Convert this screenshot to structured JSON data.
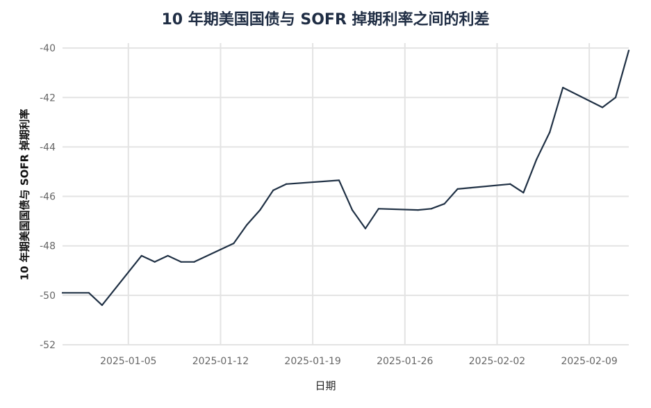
{
  "chart_data": {
    "type": "line",
    "title": "10 年期美国国债与 SOFR 掉期利率之间的利差",
    "xlabel": "日期",
    "ylabel": "10 年期美国国债与 SOFR 掉期利率",
    "x_ticks": [
      "2025-01-05",
      "2025-01-12",
      "2025-01-19",
      "2025-01-26",
      "2025-02-02",
      "2025-02-09"
    ],
    "y_ticks": [
      -40,
      -42,
      -44,
      -46,
      -48,
      -50,
      -52
    ],
    "ylim": [
      -52,
      -39.8
    ],
    "xlim": [
      "2024-12-31",
      "2025-02-12"
    ],
    "grid": true,
    "line_color": "#1f3044",
    "series": [
      {
        "x": [
          "2024-12-31",
          "2025-01-02",
          "2025-01-03",
          "2025-01-06",
          "2025-01-07",
          "2025-01-08",
          "2025-01-09",
          "2025-01-10",
          "2025-01-13",
          "2025-01-14",
          "2025-01-15",
          "2025-01-16",
          "2025-01-17",
          "2025-01-21",
          "2025-01-22",
          "2025-01-23",
          "2025-01-24",
          "2025-01-27",
          "2025-01-28",
          "2025-01-29",
          "2025-01-30",
          "2025-01-31",
          "2025-02-03",
          "2025-02-04",
          "2025-02-05",
          "2025-02-06",
          "2025-02-07",
          "2025-02-10",
          "2025-02-11",
          "2025-02-12"
        ],
        "values": [
          -49.9,
          -49.9,
          -50.4,
          -48.4,
          -48.65,
          -48.4,
          -48.65,
          -48.65,
          -47.9,
          -47.15,
          -46.55,
          -45.75,
          -45.5,
          -45.35,
          -46.55,
          -47.3,
          -46.5,
          -46.55,
          -46.5,
          -46.3,
          -45.7,
          -45.65,
          -45.5,
          -45.85,
          -44.5,
          -43.4,
          -41.6,
          -42.4,
          -42.0,
          -40.1
        ]
      }
    ]
  }
}
